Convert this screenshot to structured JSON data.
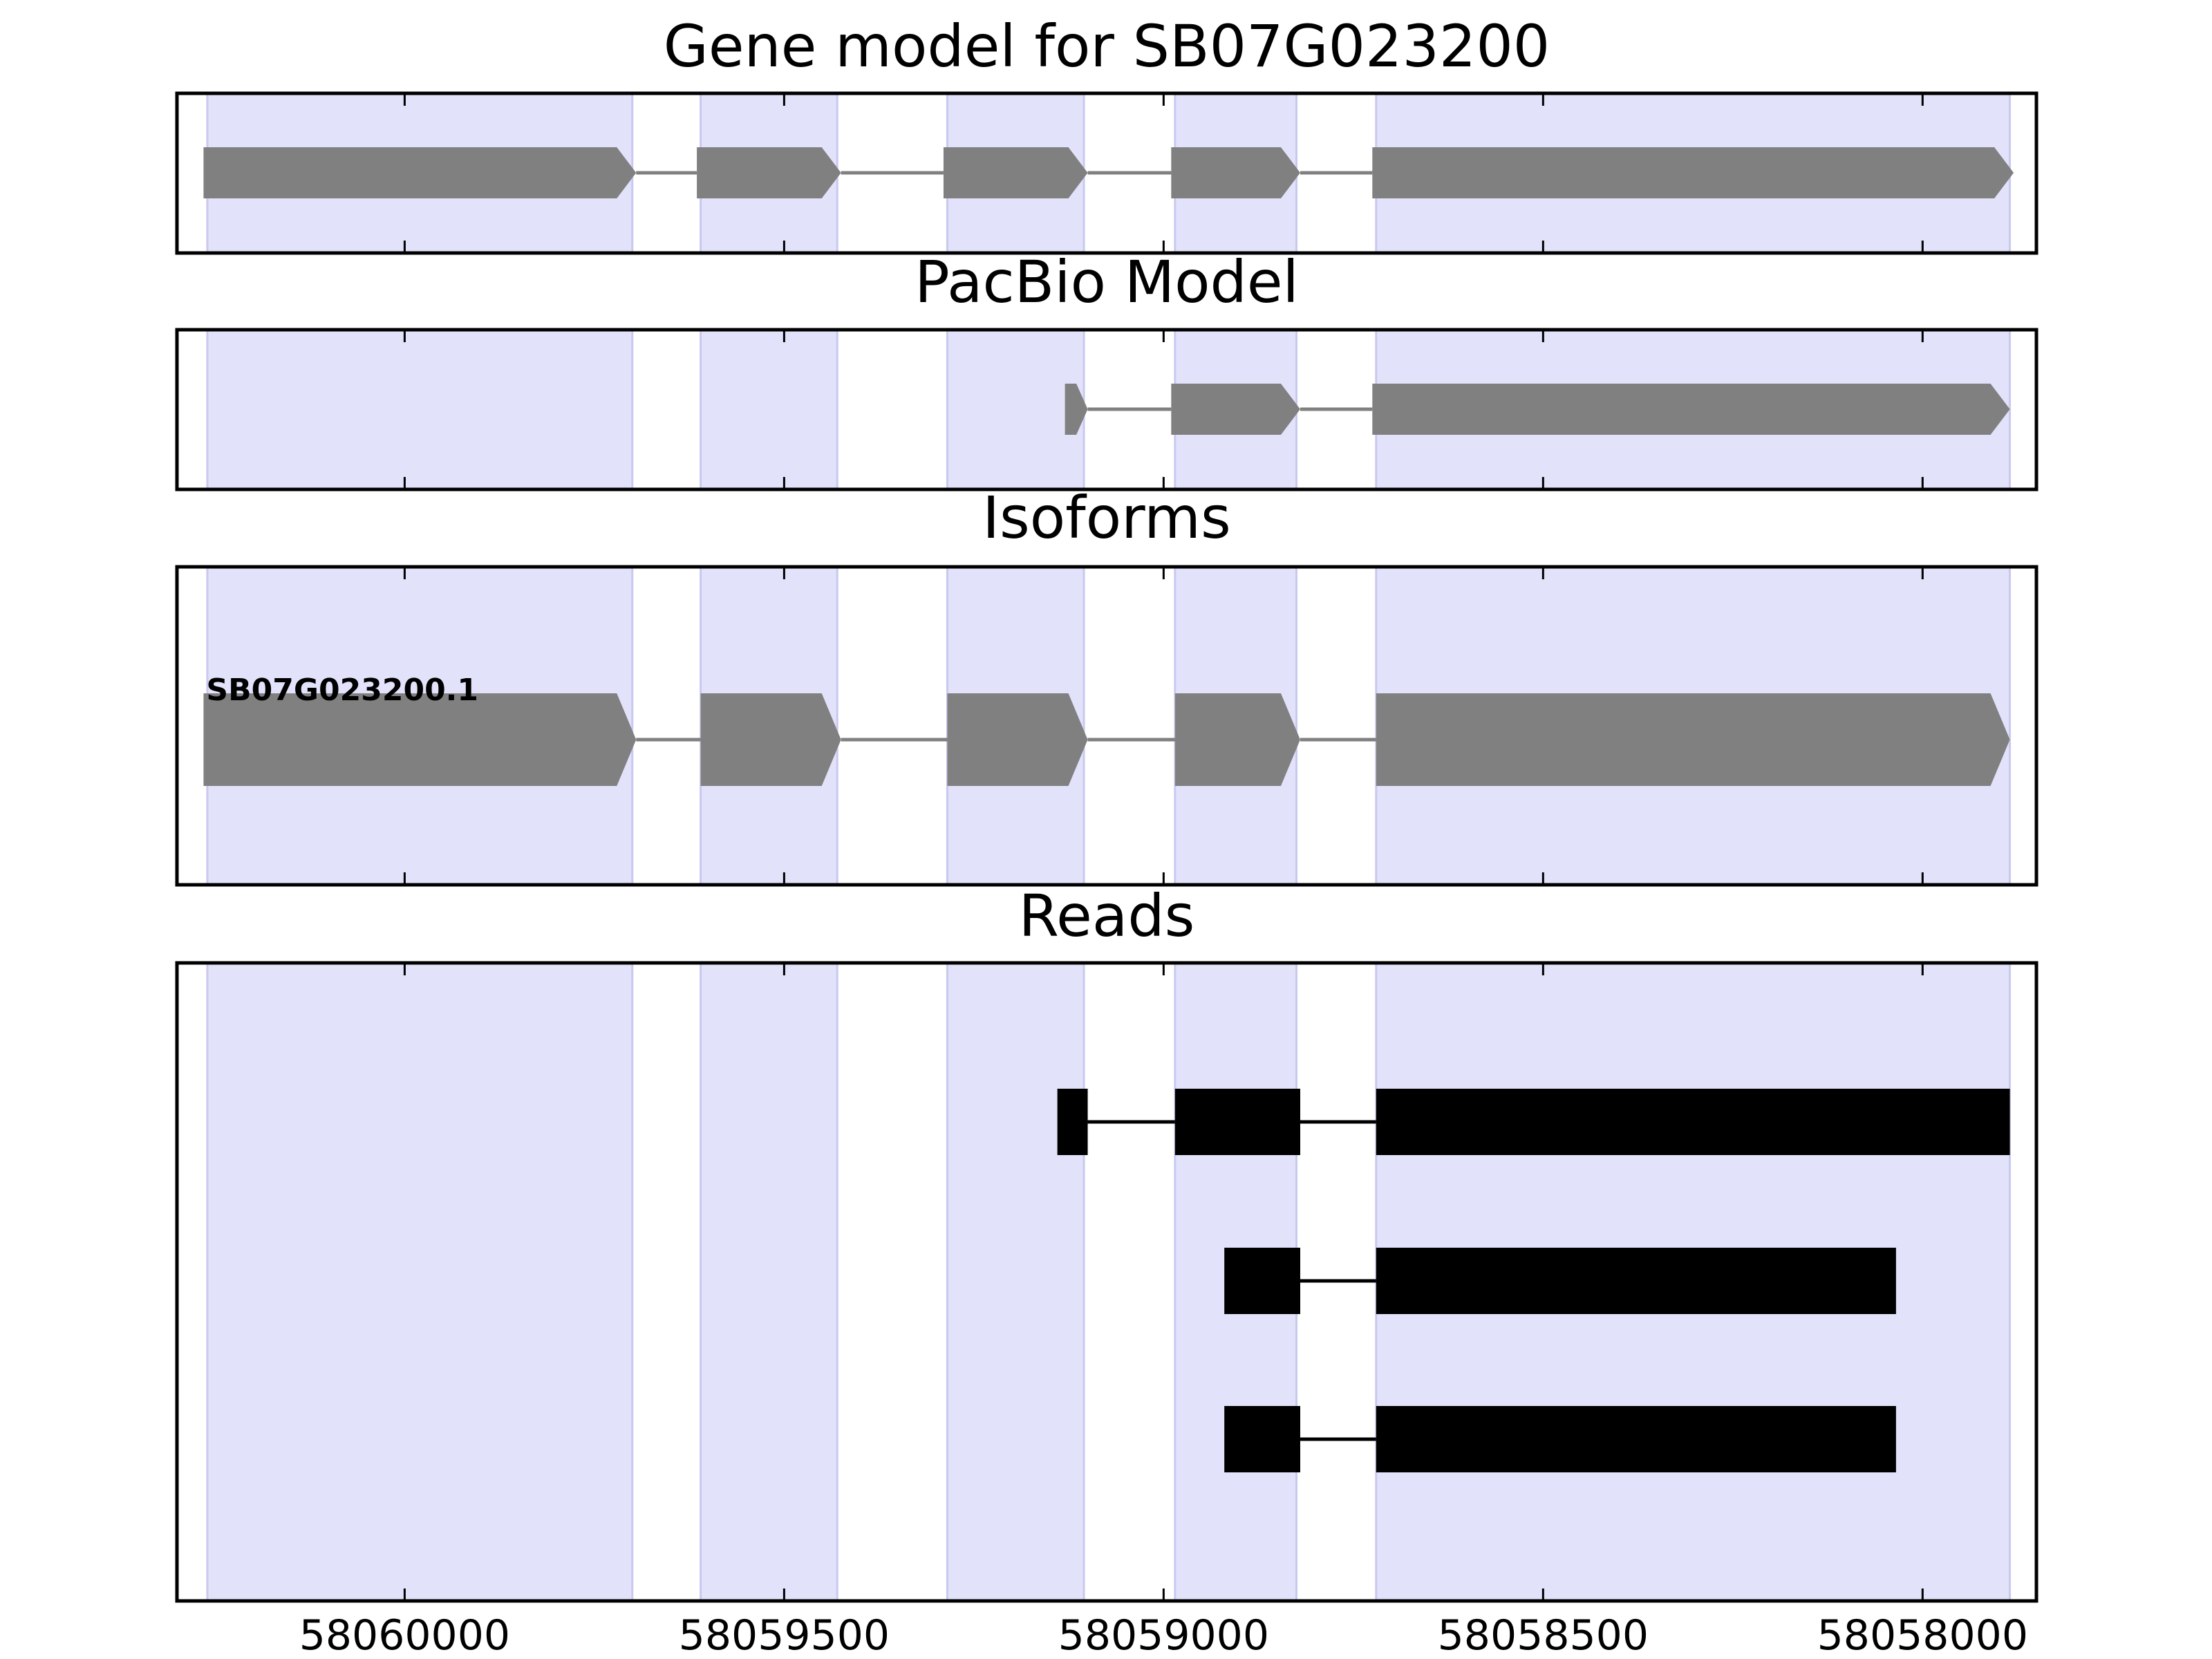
{
  "chart_data": {
    "type": "gene-track",
    "xlim": [
      58060300,
      58057850
    ],
    "xaxis_reversed": true,
    "xticks": [
      58060000,
      58059500,
      58059000,
      58058500,
      58058000
    ],
    "xtick_labels": [
      "58060000",
      "58059500",
      "58059000",
      "58058500",
      "58058000"
    ],
    "shaded_regions": [
      [
        58060260,
        58059700
      ],
      [
        58059610,
        58059430
      ],
      [
        58059285,
        58059105
      ],
      [
        58058985,
        58058825
      ],
      [
        58058720,
        58057885
      ]
    ],
    "panels": [
      {
        "title": "Gene model for SB07G023200",
        "style": "arrow",
        "color": "#808080",
        "tracks": [
          {
            "label": "",
            "exons": [
              [
                58060265,
                58059695
              ],
              [
                58059615,
                58059425
              ],
              [
                58059290,
                58059100
              ],
              [
                58058990,
                58058820
              ],
              [
                58058725,
                58057880
              ]
            ]
          }
        ]
      },
      {
        "title": "PacBio Model",
        "style": "arrow",
        "color": "#808080",
        "tracks": [
          {
            "label": "",
            "exons": [
              [
                58059130,
                58059100
              ],
              [
                58058990,
                58058820
              ],
              [
                58058725,
                58057885
              ]
            ]
          }
        ]
      },
      {
        "title": "Isoforms",
        "style": "arrow",
        "color": "#808080",
        "tracks": [
          {
            "label": "SB07G023200.1",
            "exons": [
              [
                58060265,
                58059695
              ],
              [
                58059610,
                58059425
              ],
              [
                58059285,
                58059100
              ],
              [
                58058985,
                58058820
              ],
              [
                58058720,
                58057885
              ]
            ]
          }
        ]
      },
      {
        "title": "Reads",
        "style": "box",
        "color": "#000000",
        "tracks": [
          {
            "label": "",
            "exons": [
              [
                58059140,
                58059100
              ],
              [
                58058985,
                58058820
              ],
              [
                58058720,
                58057885
              ]
            ]
          },
          {
            "label": "",
            "exons": [
              [
                58058920,
                58058820
              ],
              [
                58058720,
                58058035
              ]
            ]
          },
          {
            "label": "",
            "exons": [
              [
                58058920,
                58058820
              ],
              [
                58058720,
                58058035
              ]
            ]
          }
        ]
      }
    ],
    "colors": {
      "shade": "#e2e2fb",
      "shade_edge": "#c9c9f0",
      "axis": "#000000",
      "intron": "#808080"
    }
  }
}
